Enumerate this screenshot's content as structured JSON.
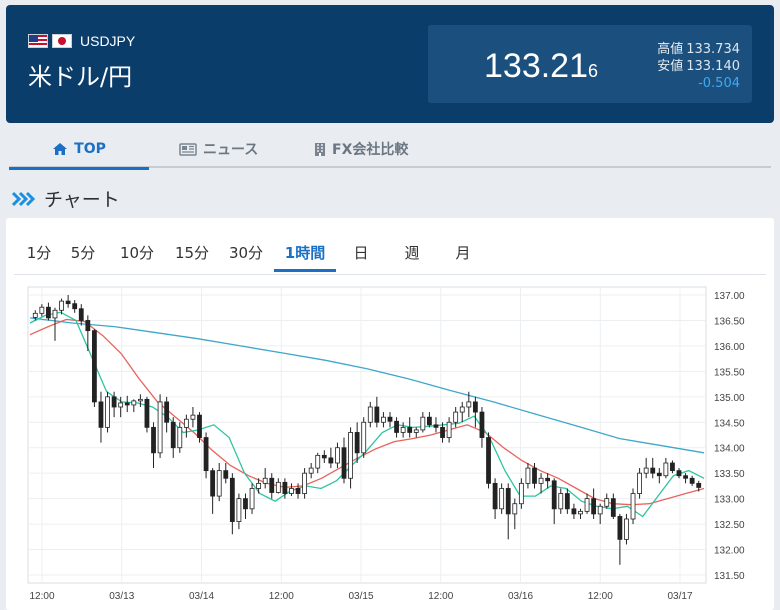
{
  "header": {
    "pair_code": "USDJPY",
    "pair_name": "米ドル/円",
    "price_main": "133.21",
    "price_small": "6",
    "high_label": "高値",
    "high_value": "133.734",
    "low_label": "安値",
    "low_value": "133.140",
    "change": "-0.504",
    "colors": {
      "background": "#0b3d6b",
      "change": "#3fa9f5"
    }
  },
  "nav": {
    "tabs": [
      {
        "label": "TOP",
        "icon": "home-icon",
        "active": true
      },
      {
        "label": "ニュース",
        "icon": "news-icon",
        "active": false
      },
      {
        "label": "FX会社比較",
        "icon": "building-icon",
        "active": false
      }
    ]
  },
  "section": {
    "title": "チャート",
    "icon": "double-chevron-icon"
  },
  "periods": [
    "1分",
    "5分",
    "10分",
    "15分",
    "30分",
    "1時間",
    "日",
    "週",
    "月"
  ],
  "active_period": "1時間",
  "chart_data": {
    "type": "candlestick",
    "ylim": [
      131.5,
      137.0
    ],
    "y_ticks": [
      "137.00",
      "136.50",
      "136.00",
      "135.50",
      "135.00",
      "134.50",
      "134.00",
      "133.50",
      "133.00",
      "132.50",
      "132.00",
      "131.50"
    ],
    "x_ticks": [
      "12:00",
      "03/13",
      "03/14",
      "12:00",
      "03/15",
      "12:00",
      "03/16",
      "12:00",
      "03/17"
    ],
    "colors": {
      "up": "#ffffff",
      "down": "#222222",
      "ma_short": "#2ec4a0",
      "ma_mid": "#e8635a",
      "ma_long": "#3fa7c9"
    },
    "ohlc": [
      [
        136.56,
        136.7,
        136.5,
        136.64
      ],
      [
        136.64,
        136.82,
        136.58,
        136.76
      ],
      [
        136.76,
        136.85,
        136.5,
        136.55
      ],
      [
        136.55,
        136.75,
        136.1,
        136.7
      ],
      [
        136.7,
        136.93,
        136.62,
        136.88
      ],
      [
        136.88,
        137.0,
        136.75,
        136.83
      ],
      [
        136.83,
        136.9,
        136.65,
        136.73
      ],
      [
        136.73,
        136.82,
        136.4,
        136.5
      ],
      [
        136.5,
        136.6,
        135.9,
        136.3
      ],
      [
        136.3,
        136.33,
        134.8,
        134.9
      ],
      [
        134.9,
        135.1,
        134.1,
        134.4
      ],
      [
        134.4,
        135.1,
        134.3,
        135.0
      ],
      [
        135.0,
        135.1,
        134.6,
        134.8
      ],
      [
        134.8,
        135.0,
        134.6,
        134.88
      ],
      [
        134.88,
        135.02,
        134.7,
        134.84
      ],
      [
        134.84,
        134.95,
        134.7,
        134.92
      ],
      [
        134.92,
        135.05,
        134.8,
        134.95
      ],
      [
        134.95,
        135.0,
        134.3,
        134.4
      ],
      [
        134.4,
        134.5,
        133.6,
        133.9
      ],
      [
        133.9,
        135.05,
        133.8,
        134.9
      ],
      [
        134.9,
        135.0,
        134.3,
        134.5
      ],
      [
        134.5,
        134.6,
        133.8,
        134.0
      ],
      [
        134.0,
        134.5,
        133.9,
        134.4
      ],
      [
        134.4,
        134.65,
        134.2,
        134.56
      ],
      [
        134.56,
        134.8,
        134.4,
        134.64
      ],
      [
        134.64,
        134.7,
        134.1,
        134.2
      ],
      [
        134.2,
        134.3,
        133.4,
        133.55
      ],
      [
        133.55,
        133.6,
        132.7,
        133.05
      ],
      [
        133.05,
        133.7,
        132.95,
        133.55
      ],
      [
        133.55,
        133.7,
        133.3,
        133.4
      ],
      [
        133.4,
        133.5,
        132.3,
        132.55
      ],
      [
        132.55,
        133.1,
        132.4,
        133.0
      ],
      [
        133.0,
        133.1,
        132.6,
        132.8
      ],
      [
        132.8,
        133.3,
        132.7,
        133.2
      ],
      [
        133.2,
        133.4,
        133.1,
        133.3
      ],
      [
        133.3,
        133.6,
        133.2,
        133.4
      ],
      [
        133.4,
        133.5,
        133.0,
        133.12
      ],
      [
        133.12,
        133.4,
        133.1,
        133.32
      ],
      [
        133.32,
        133.4,
        133.0,
        133.1
      ],
      [
        133.1,
        133.3,
        133.05,
        133.2
      ],
      [
        133.2,
        133.3,
        133.0,
        133.1
      ],
      [
        133.1,
        133.6,
        133.0,
        133.5
      ],
      [
        133.5,
        133.7,
        133.4,
        133.6
      ],
      [
        133.6,
        133.9,
        133.5,
        133.85
      ],
      [
        133.85,
        133.95,
        133.7,
        133.8
      ],
      [
        133.8,
        134.0,
        133.6,
        133.7
      ],
      [
        133.7,
        134.1,
        133.6,
        134.0
      ],
      [
        134.0,
        134.2,
        133.3,
        133.4
      ],
      [
        133.4,
        134.4,
        133.2,
        134.3
      ],
      [
        134.3,
        134.5,
        133.7,
        133.9
      ],
      [
        133.9,
        134.6,
        133.8,
        134.5
      ],
      [
        134.5,
        134.9,
        134.4,
        134.8
      ],
      [
        134.8,
        135.0,
        134.4,
        134.5
      ],
      [
        134.5,
        134.7,
        134.4,
        134.6
      ],
      [
        134.6,
        134.7,
        134.4,
        134.52
      ],
      [
        134.52,
        134.6,
        134.2,
        134.3
      ],
      [
        134.3,
        134.5,
        134.2,
        134.4
      ],
      [
        134.4,
        134.6,
        134.2,
        134.3
      ],
      [
        134.3,
        134.4,
        134.2,
        134.35
      ],
      [
        134.35,
        134.7,
        134.3,
        134.6
      ],
      [
        134.6,
        134.7,
        134.4,
        134.45
      ],
      [
        134.45,
        134.6,
        134.3,
        134.4
      ],
      [
        134.4,
        134.5,
        134.1,
        134.2
      ],
      [
        134.2,
        134.6,
        134.1,
        134.5
      ],
      [
        134.5,
        134.8,
        134.4,
        134.7
      ],
      [
        134.7,
        134.9,
        134.5,
        134.8
      ],
      [
        134.8,
        135.1,
        134.6,
        134.9
      ],
      [
        134.9,
        135.0,
        134.4,
        134.7
      ],
      [
        134.7,
        134.8,
        134.0,
        134.2
      ],
      [
        134.2,
        134.3,
        133.2,
        133.3
      ],
      [
        133.3,
        133.4,
        132.6,
        132.8
      ],
      [
        132.8,
        133.3,
        132.7,
        133.2
      ],
      [
        133.2,
        133.3,
        132.2,
        132.7
      ],
      [
        132.7,
        133.0,
        132.4,
        132.9
      ],
      [
        132.9,
        133.4,
        132.8,
        133.3
      ],
      [
        133.3,
        133.7,
        133.2,
        133.6
      ],
      [
        133.6,
        133.7,
        133.2,
        133.3
      ],
      [
        133.3,
        133.5,
        133.1,
        133.4
      ],
      [
        133.4,
        133.5,
        133.2,
        133.35
      ],
      [
        133.35,
        133.4,
        132.5,
        132.8
      ],
      [
        132.8,
        133.2,
        132.7,
        133.1
      ],
      [
        133.1,
        133.2,
        132.7,
        132.8
      ],
      [
        132.8,
        132.9,
        132.6,
        132.7
      ],
      [
        132.7,
        132.8,
        132.6,
        132.75
      ],
      [
        132.75,
        133.1,
        132.7,
        133.0
      ],
      [
        133.0,
        133.2,
        132.6,
        132.7
      ],
      [
        132.7,
        132.9,
        132.5,
        132.85
      ],
      [
        132.85,
        133.1,
        132.8,
        133.0
      ],
      [
        133.0,
        133.1,
        132.6,
        132.65
      ],
      [
        132.65,
        132.7,
        131.7,
        132.2
      ],
      [
        132.2,
        132.7,
        132.1,
        132.6
      ],
      [
        132.6,
        133.2,
        132.5,
        133.1
      ],
      [
        133.1,
        133.6,
        133.0,
        133.5
      ],
      [
        133.5,
        133.8,
        133.4,
        133.6
      ],
      [
        133.6,
        133.8,
        133.4,
        133.5
      ],
      [
        133.5,
        133.6,
        133.3,
        133.45
      ],
      [
        133.45,
        133.8,
        133.4,
        133.7
      ],
      [
        133.7,
        133.75,
        133.5,
        133.55
      ],
      [
        133.55,
        133.6,
        133.4,
        133.45
      ],
      [
        133.45,
        133.5,
        133.3,
        133.4
      ],
      [
        133.4,
        133.45,
        133.25,
        133.3
      ],
      [
        133.3,
        133.35,
        133.14,
        133.22
      ]
    ],
    "ma_short": [
      136.45,
      136.6,
      136.66,
      136.5,
      135.8,
      135.1,
      134.9,
      134.88,
      134.8,
      134.6,
      134.3,
      134.35,
      134.45,
      134.2,
      133.5,
      133.1,
      132.95,
      133.15,
      133.25,
      133.2,
      133.35,
      133.65,
      133.95,
      134.3,
      134.45,
      134.4,
      134.42,
      134.45,
      134.48,
      134.62,
      134.2,
      133.55,
      133.05,
      133.05,
      133.25,
      133.2,
      132.95,
      132.85,
      132.8,
      132.85,
      132.65,
      133.05,
      133.45,
      133.55,
      133.4
    ],
    "ma_mid": [
      136.22,
      136.38,
      136.52,
      136.48,
      136.2,
      135.85,
      135.35,
      134.9,
      134.6,
      134.3,
      133.95,
      133.65,
      133.45,
      133.3,
      133.22,
      133.25,
      133.4,
      133.6,
      133.8,
      133.98,
      134.12,
      134.18,
      134.25,
      134.35,
      134.45,
      134.3,
      134.0,
      133.75,
      133.55,
      133.4,
      133.2,
      133.0,
      132.9,
      132.88,
      132.9,
      133.0,
      133.1,
      133.2
    ],
    "ma_long": [
      136.55,
      136.45,
      136.38,
      136.26,
      136.14,
      136.0,
      135.86,
      135.72,
      135.55,
      135.35,
      135.12,
      134.9,
      134.66,
      134.42,
      134.18,
      134.04,
      133.9
    ]
  }
}
